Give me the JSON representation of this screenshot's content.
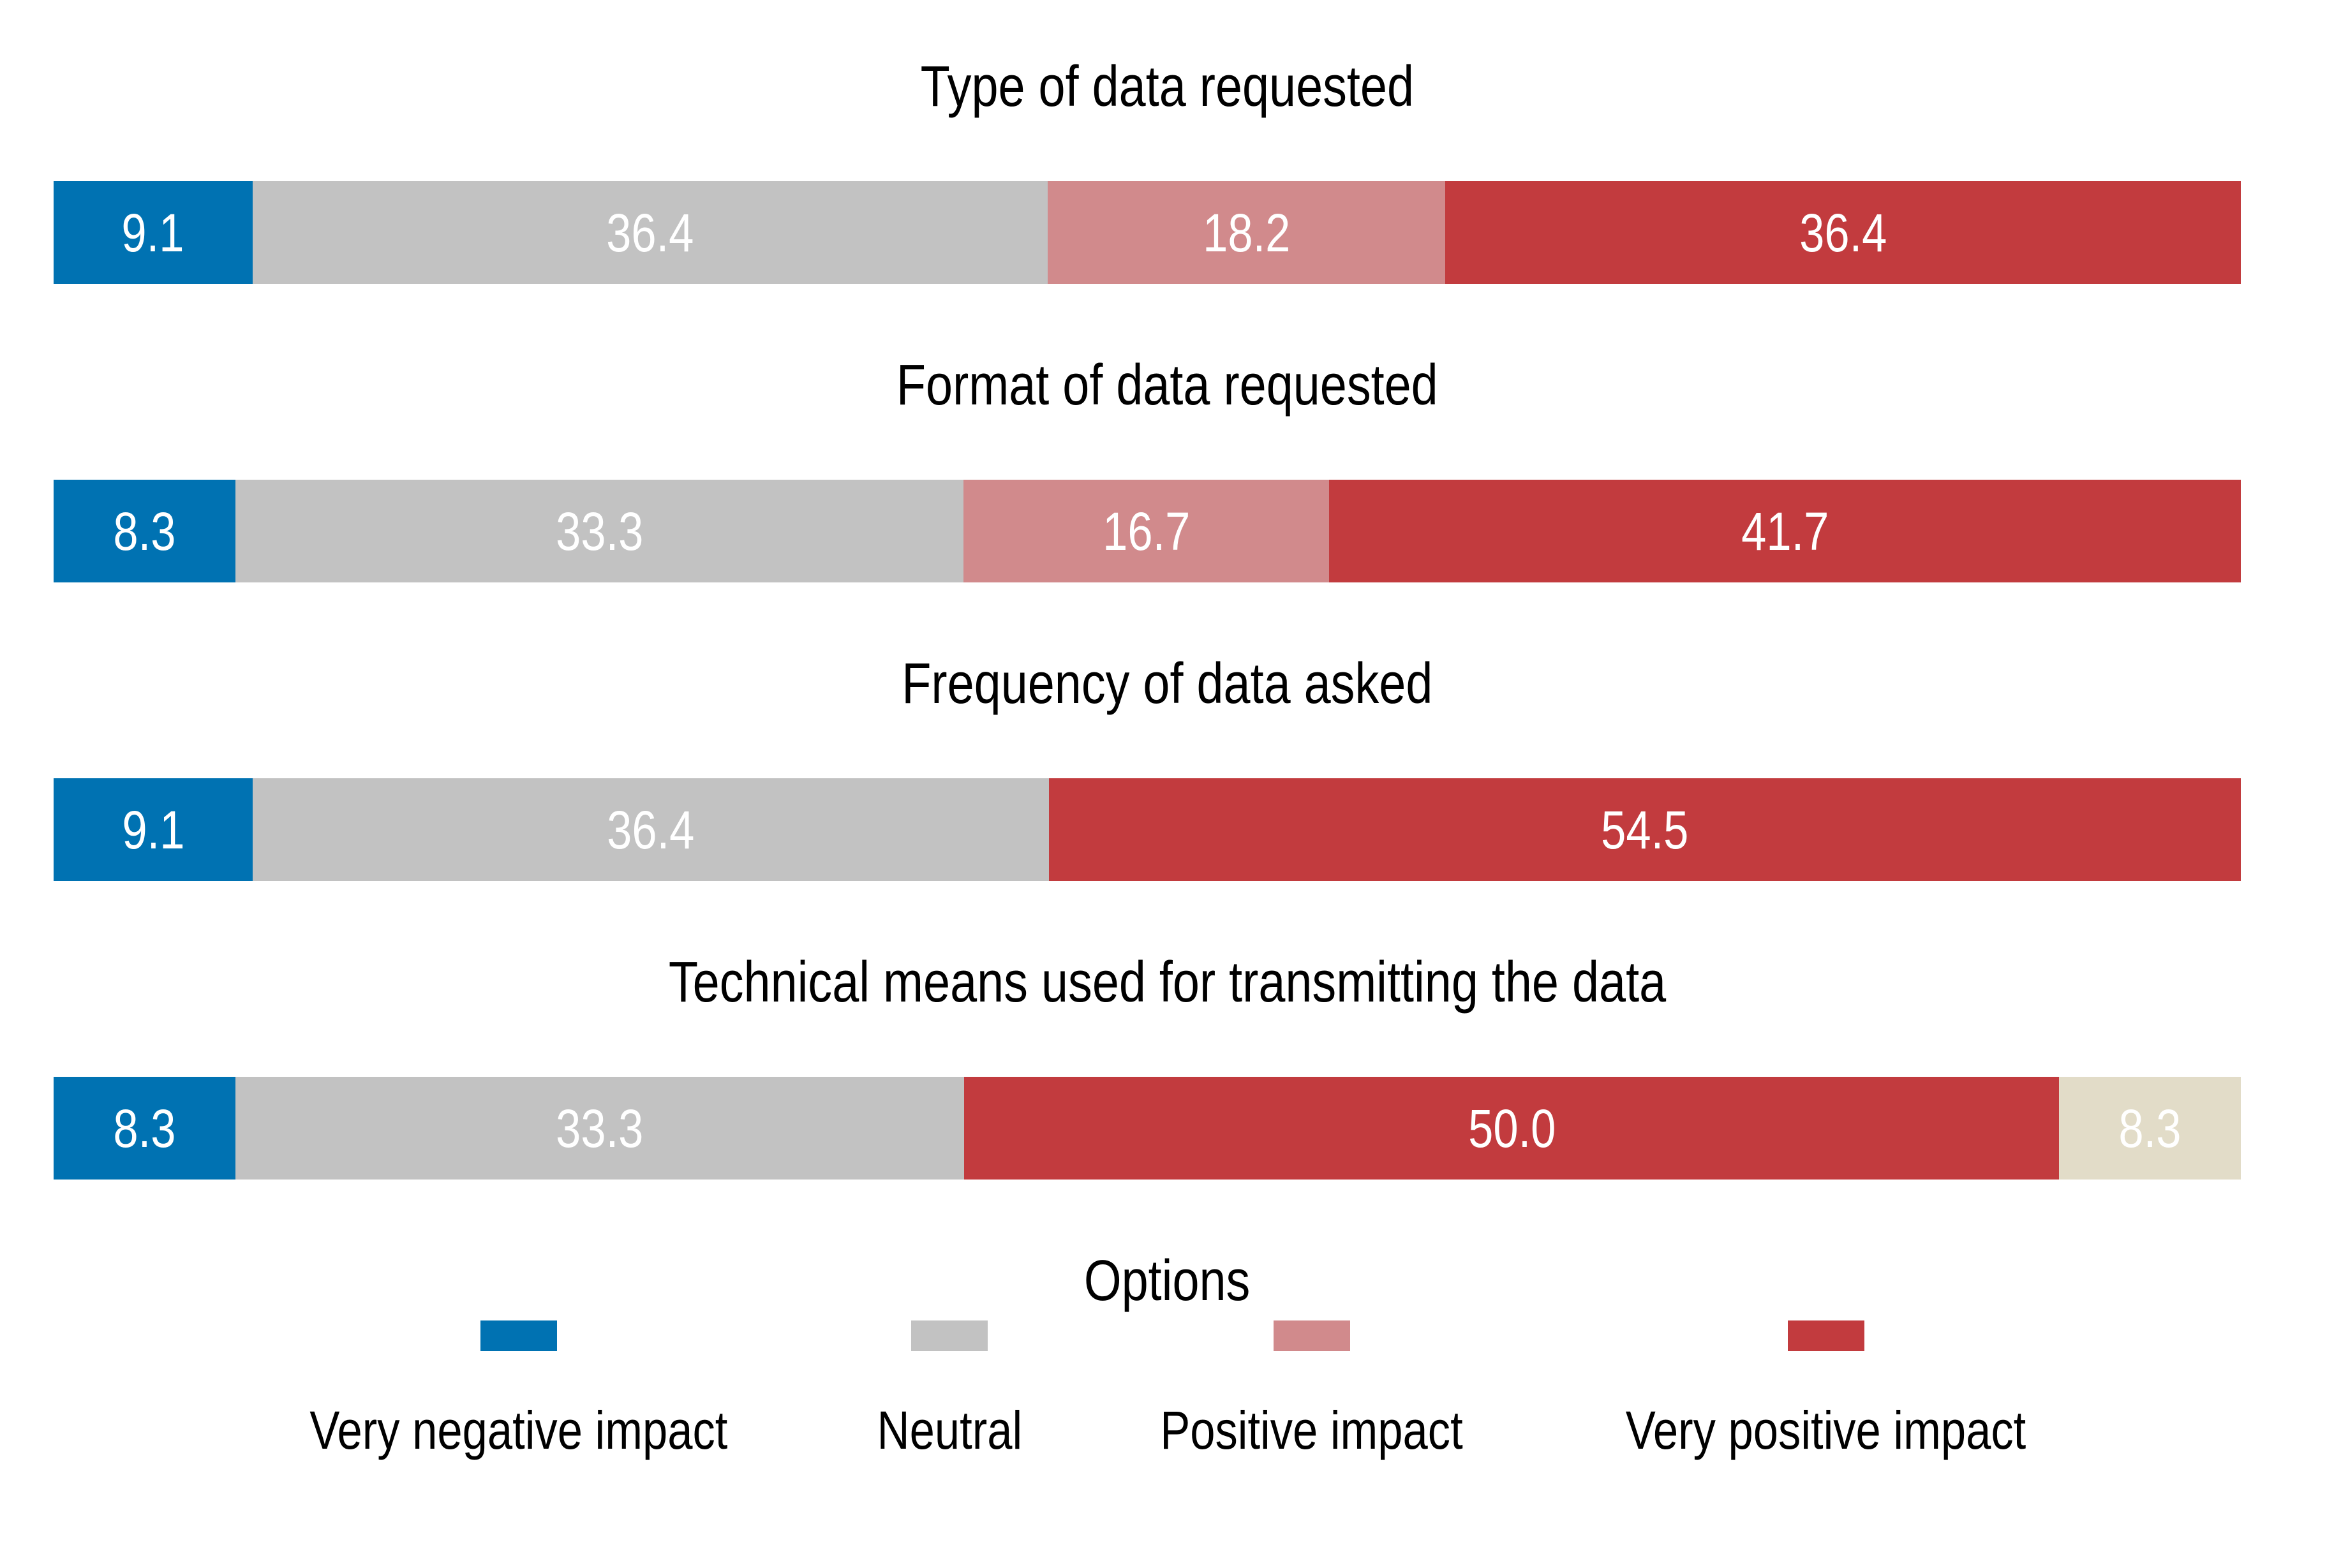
{
  "chart_data": {
    "type": "bar",
    "variant": "horizontal-stacked",
    "unit": "percent",
    "value_label_color": "#FFFFFF",
    "grid": false,
    "colors": {
      "Very negative impact": "#0072B2",
      "Neutral": "#C2C2C2",
      "Positive impact": "#D18A8C",
      "Very positive impact": "#C23B3E",
      "unlabeled": "#E2DCC8"
    },
    "groups": [
      {
        "title": "Type of data requested",
        "segments": [
          {
            "option": "Very negative impact",
            "value": 9.1,
            "label": "9.1"
          },
          {
            "option": "Neutral",
            "value": 36.4,
            "label": "36.4"
          },
          {
            "option": "Positive impact",
            "value": 18.2,
            "label": "18.2"
          },
          {
            "option": "Very positive impact",
            "value": 36.4,
            "label": "36.4"
          }
        ]
      },
      {
        "title": "Format of data requested",
        "segments": [
          {
            "option": "Very negative impact",
            "value": 8.3,
            "label": "8.3"
          },
          {
            "option": "Neutral",
            "value": 33.3,
            "label": "33.3"
          },
          {
            "option": "Positive impact",
            "value": 16.7,
            "label": "16.7"
          },
          {
            "option": "Very positive impact",
            "value": 41.7,
            "label": "41.7"
          }
        ]
      },
      {
        "title": "Frequency of data asked",
        "segments": [
          {
            "option": "Very negative impact",
            "value": 9.1,
            "label": "9.1"
          },
          {
            "option": "Neutral",
            "value": 36.4,
            "label": "36.4"
          },
          {
            "option": "Very positive impact",
            "value": 54.5,
            "label": "54.5"
          }
        ]
      },
      {
        "title": "Technical means used for transmitting the data",
        "segments": [
          {
            "option": "Very negative impact",
            "value": 8.3,
            "label": "8.3"
          },
          {
            "option": "Neutral",
            "value": 33.3,
            "label": "33.3"
          },
          {
            "option": "Very positive impact",
            "value": 50.0,
            "label": "50.0"
          },
          {
            "option": "unlabeled",
            "value": 8.3,
            "label": "8.3"
          }
        ]
      }
    ],
    "legend": {
      "title": "Options",
      "entries": [
        {
          "label": "Very negative impact",
          "color": "#0072B2"
        },
        {
          "label": "Neutral",
          "color": "#C2C2C2"
        },
        {
          "label": "Positive impact",
          "color": "#D18A8C"
        },
        {
          "label": "Very positive impact",
          "color": "#C23B3E"
        }
      ]
    }
  }
}
